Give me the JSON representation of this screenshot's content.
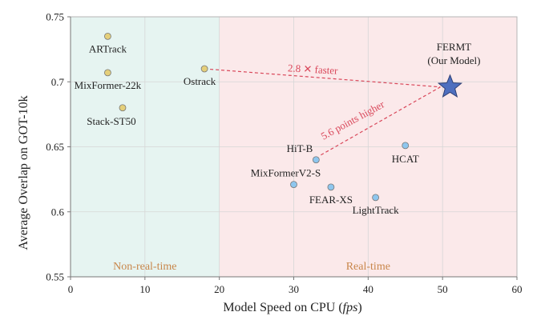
{
  "chart_data": {
    "type": "scatter",
    "title": "",
    "xlabel": "Model Speed on CPU (",
    "xlabel_italic": "fps",
    "xlabel_suffix": ")",
    "ylabel": "Average Overlap on GOT-10k",
    "xlim": [
      0,
      60
    ],
    "ylim": [
      0.55,
      0.75
    ],
    "x_ticks": [
      0,
      10,
      20,
      30,
      40,
      50,
      60
    ],
    "y_ticks": [
      0.55,
      0.6,
      0.65,
      0.7,
      0.75
    ],
    "y_tick_labels": [
      "0.55",
      "0.6",
      "0.65",
      "0.7",
      "0.75"
    ],
    "grid": true,
    "regions": [
      {
        "label": "Non-real-time",
        "x_range": [
          0,
          20
        ],
        "color": "#e6f4f1",
        "label_color": "#c8864a"
      },
      {
        "label": "Real-time",
        "x_range": [
          20,
          60
        ],
        "color": "#fbe9ea",
        "label_color": "#c8864a"
      }
    ],
    "series": [
      {
        "group": "non-real-time",
        "color": "#e4cf7a",
        "points": [
          {
            "label": "ARTrack",
            "x": 5,
            "y": 0.735
          },
          {
            "label": "MixFormer-22k",
            "x": 5,
            "y": 0.707
          },
          {
            "label": "Stack-ST50",
            "x": 7,
            "y": 0.68
          },
          {
            "label": "Ostrack",
            "x": 18,
            "y": 0.71
          }
        ]
      },
      {
        "group": "real-time",
        "color": "#8ec6ee",
        "points": [
          {
            "label": "HiT-B",
            "x": 33,
            "y": 0.64
          },
          {
            "label": "HCAT",
            "x": 45,
            "y": 0.651
          },
          {
            "label": "MixFormerV2-S",
            "x": 30,
            "y": 0.621
          },
          {
            "label": "FEAR-XS",
            "x": 35,
            "y": 0.619
          },
          {
            "label": "LightTrack",
            "x": 41,
            "y": 0.611
          }
        ]
      }
    ],
    "highlight": {
      "label_line1": "FERMT",
      "label_line2": "(Our Model)",
      "x": 51,
      "y": 0.696,
      "marker": "star",
      "color": "#4e6fbf"
    },
    "annotations": [
      {
        "text_value": "2.8",
        "text_symbol": "✕",
        "text_word": "faster",
        "from": "Ostrack",
        "to": "FERMT",
        "color": "#d9475a"
      },
      {
        "text": "5.6 points higher",
        "from": "HiT-B",
        "to": "FERMT",
        "color": "#d9475a"
      }
    ]
  }
}
